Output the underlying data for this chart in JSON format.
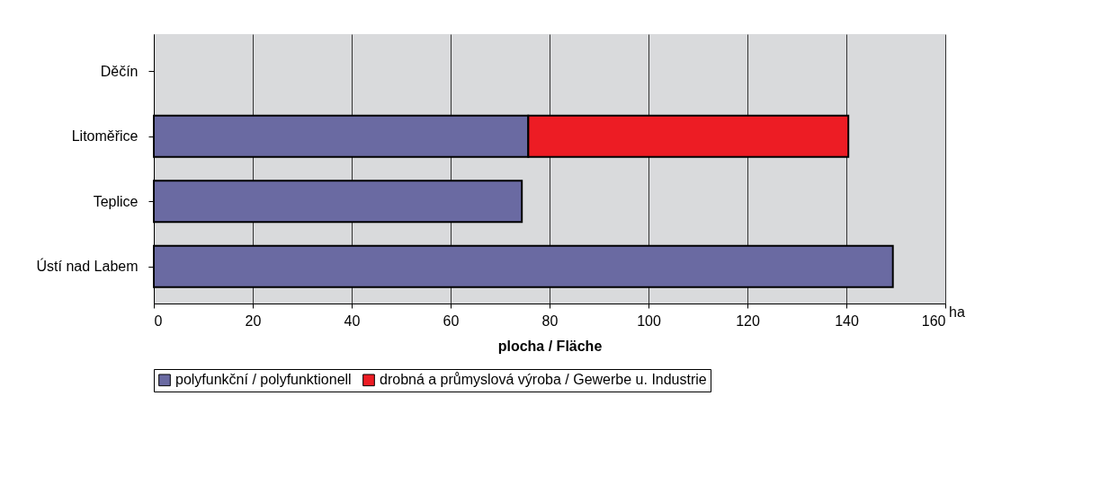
{
  "chart_data": {
    "type": "bar",
    "orientation": "horizontal",
    "stacked": true,
    "categories": [
      "Děčín",
      "Litoměřice",
      "Teplice",
      "Ústí nad Labem"
    ],
    "series": [
      {
        "name": "polyfunkční / polyfunktionell",
        "color": "#6a6aa2",
        "values": [
          null,
          75.7,
          74.4,
          149.4
        ]
      },
      {
        "name": "drobná a průmyslová výroba / Gewerbe u. Industrie",
        "color": "#ed1c24",
        "values": [
          null,
          64.7,
          null,
          null
        ]
      }
    ],
    "xlim": [
      0,
      160
    ],
    "xticks": [
      0,
      20,
      40,
      60,
      80,
      100,
      120,
      140,
      160
    ],
    "xlabel": "plocha / Fläche",
    "annotations": [
      "ha"
    ],
    "grid": "x",
    "legend": "bottom"
  }
}
